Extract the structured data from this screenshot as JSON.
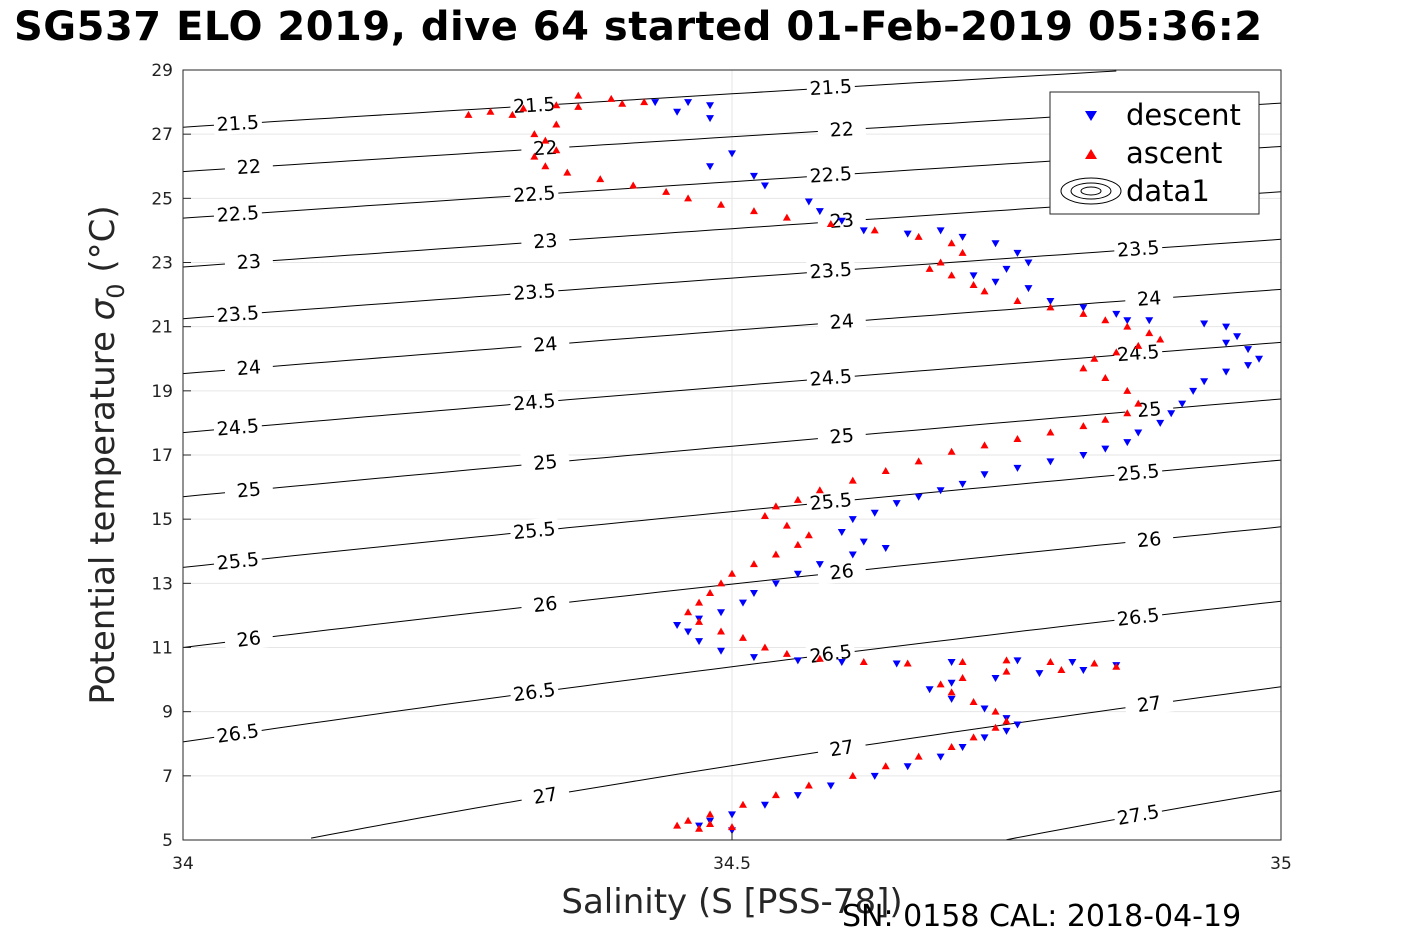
{
  "title": "SG537 ELO 2019, dive 64 started 01-Feb-2019 05:36:2",
  "footer": "SN: 0158  CAL: 2018-04-19",
  "colors": {
    "descent": "#0000ff",
    "ascent": "#ff0000",
    "contour": "#000000",
    "grid": "#e6e6e6"
  },
  "chart_data": {
    "type": "scatter",
    "xlabel": "Salinity (S [PSS-78])",
    "ylabel_main": "Potential temperature ",
    "ylabel_sigma": "σ",
    "ylabel_sub": "0",
    "ylabel_unit": " (°C)",
    "xlim": [
      34,
      35
    ],
    "ylim": [
      5,
      29
    ],
    "xticks": [
      "34",
      "34.5",
      "35"
    ],
    "yticks": [
      "5",
      "7",
      "9",
      "11",
      "13",
      "15",
      "17",
      "19",
      "21",
      "23",
      "25",
      "27",
      "29"
    ],
    "grid": true,
    "legend": {
      "position": "top-right",
      "entries": [
        "descent",
        "ascent",
        "data1"
      ]
    },
    "contours": [
      {
        "level": 21.5,
        "label": "21.5"
      },
      {
        "level": 22,
        "label": "22"
      },
      {
        "level": 22.5,
        "label": "22.5"
      },
      {
        "level": 23,
        "label": "23"
      },
      {
        "level": 23.5,
        "label": "23.5"
      },
      {
        "level": 24,
        "label": "24"
      },
      {
        "level": 24.5,
        "label": "24.5"
      },
      {
        "level": 25,
        "label": "25"
      },
      {
        "level": 25.5,
        "label": "25.5"
      },
      {
        "level": 26,
        "label": "26"
      },
      {
        "level": 26.5,
        "label": "26.5"
      },
      {
        "level": 27,
        "label": "27"
      },
      {
        "level": 27.5,
        "label": "27.5"
      }
    ],
    "series": [
      {
        "name": "descent",
        "marker": "triangle-down",
        "points": [
          [
            34.43,
            28.0
          ],
          [
            34.46,
            28.0
          ],
          [
            34.48,
            27.9
          ],
          [
            34.45,
            27.7
          ],
          [
            34.48,
            27.5
          ],
          [
            34.5,
            26.4
          ],
          [
            34.48,
            26.0
          ],
          [
            34.52,
            25.7
          ],
          [
            34.53,
            25.4
          ],
          [
            34.57,
            24.9
          ],
          [
            34.58,
            24.6
          ],
          [
            34.6,
            24.3
          ],
          [
            34.62,
            24.0
          ],
          [
            34.66,
            23.9
          ],
          [
            34.69,
            24.0
          ],
          [
            34.71,
            23.8
          ],
          [
            34.74,
            23.6
          ],
          [
            34.76,
            23.3
          ],
          [
            34.77,
            23.0
          ],
          [
            34.75,
            22.8
          ],
          [
            34.72,
            22.6
          ],
          [
            34.74,
            22.4
          ],
          [
            34.77,
            22.2
          ],
          [
            34.79,
            21.8
          ],
          [
            34.82,
            21.6
          ],
          [
            34.85,
            21.4
          ],
          [
            34.86,
            21.2
          ],
          [
            34.88,
            21.2
          ],
          [
            34.93,
            21.1
          ],
          [
            34.95,
            21.0
          ],
          [
            34.96,
            20.7
          ],
          [
            34.95,
            20.5
          ],
          [
            34.97,
            20.3
          ],
          [
            34.98,
            20.0
          ],
          [
            34.97,
            19.8
          ],
          [
            34.95,
            19.6
          ],
          [
            34.93,
            19.3
          ],
          [
            34.92,
            19.0
          ],
          [
            34.91,
            18.6
          ],
          [
            34.9,
            18.3
          ],
          [
            34.89,
            18.0
          ],
          [
            34.87,
            17.7
          ],
          [
            34.86,
            17.4
          ],
          [
            34.84,
            17.2
          ],
          [
            34.82,
            17.0
          ],
          [
            34.79,
            16.8
          ],
          [
            34.76,
            16.6
          ],
          [
            34.73,
            16.4
          ],
          [
            34.71,
            16.1
          ],
          [
            34.69,
            15.9
          ],
          [
            34.67,
            15.7
          ],
          [
            34.65,
            15.5
          ],
          [
            34.63,
            15.2
          ],
          [
            34.61,
            15.0
          ],
          [
            34.6,
            14.6
          ],
          [
            34.62,
            14.3
          ],
          [
            34.64,
            14.1
          ],
          [
            34.61,
            13.9
          ],
          [
            34.58,
            13.6
          ],
          [
            34.56,
            13.3
          ],
          [
            34.54,
            13.0
          ],
          [
            34.52,
            12.7
          ],
          [
            34.51,
            12.4
          ],
          [
            34.49,
            12.1
          ],
          [
            34.47,
            11.9
          ],
          [
            34.45,
            11.7
          ],
          [
            34.46,
            11.5
          ],
          [
            34.47,
            11.2
          ],
          [
            34.49,
            10.9
          ],
          [
            34.52,
            10.7
          ],
          [
            34.56,
            10.6
          ],
          [
            34.6,
            10.55
          ],
          [
            34.65,
            10.5
          ],
          [
            34.7,
            10.55
          ],
          [
            34.76,
            10.6
          ],
          [
            34.81,
            10.55
          ],
          [
            34.85,
            10.45
          ],
          [
            34.82,
            10.3
          ],
          [
            34.78,
            10.2
          ],
          [
            34.74,
            10.05
          ],
          [
            34.7,
            9.9
          ],
          [
            34.68,
            9.7
          ],
          [
            34.7,
            9.4
          ],
          [
            34.73,
            9.1
          ],
          [
            34.75,
            8.8
          ],
          [
            34.76,
            8.6
          ],
          [
            34.75,
            8.4
          ],
          [
            34.73,
            8.2
          ],
          [
            34.71,
            7.9
          ],
          [
            34.69,
            7.6
          ],
          [
            34.66,
            7.3
          ],
          [
            34.63,
            7.0
          ],
          [
            34.59,
            6.7
          ],
          [
            34.56,
            6.4
          ],
          [
            34.53,
            6.1
          ],
          [
            34.5,
            5.8
          ],
          [
            34.48,
            5.6
          ],
          [
            34.47,
            5.45
          ],
          [
            34.5,
            5.3
          ]
        ]
      },
      {
        "name": "ascent",
        "marker": "triangle-up",
        "points": [
          [
            34.42,
            28.0
          ],
          [
            34.39,
            28.1
          ],
          [
            34.36,
            28.2
          ],
          [
            34.34,
            27.9
          ],
          [
            34.31,
            27.8
          ],
          [
            34.28,
            27.7
          ],
          [
            34.26,
            27.6
          ],
          [
            34.3,
            27.6
          ],
          [
            34.36,
            27.85
          ],
          [
            34.4,
            27.95
          ],
          [
            34.34,
            27.3
          ],
          [
            34.32,
            27.0
          ],
          [
            34.33,
            26.8
          ],
          [
            34.34,
            26.5
          ],
          [
            34.32,
            26.3
          ],
          [
            34.33,
            26.0
          ],
          [
            34.35,
            25.8
          ],
          [
            34.38,
            25.6
          ],
          [
            34.41,
            25.4
          ],
          [
            34.44,
            25.2
          ],
          [
            34.46,
            25.0
          ],
          [
            34.49,
            24.8
          ],
          [
            34.52,
            24.6
          ],
          [
            34.55,
            24.4
          ],
          [
            34.59,
            24.2
          ],
          [
            34.63,
            24.0
          ],
          [
            34.67,
            23.8
          ],
          [
            34.7,
            23.6
          ],
          [
            34.71,
            23.3
          ],
          [
            34.69,
            23.0
          ],
          [
            34.68,
            22.8
          ],
          [
            34.7,
            22.6
          ],
          [
            34.72,
            22.3
          ],
          [
            34.73,
            22.1
          ],
          [
            34.76,
            21.8
          ],
          [
            34.79,
            21.6
          ],
          [
            34.82,
            21.4
          ],
          [
            34.84,
            21.2
          ],
          [
            34.86,
            21.0
          ],
          [
            34.88,
            20.8
          ],
          [
            34.89,
            20.6
          ],
          [
            34.87,
            20.4
          ],
          [
            34.85,
            20.2
          ],
          [
            34.83,
            20.0
          ],
          [
            34.82,
            19.7
          ],
          [
            34.84,
            19.4
          ],
          [
            34.86,
            19.0
          ],
          [
            34.87,
            18.6
          ],
          [
            34.86,
            18.3
          ],
          [
            34.84,
            18.1
          ],
          [
            34.82,
            17.9
          ],
          [
            34.79,
            17.7
          ],
          [
            34.76,
            17.5
          ],
          [
            34.73,
            17.3
          ],
          [
            34.7,
            17.1
          ],
          [
            34.67,
            16.8
          ],
          [
            34.64,
            16.5
          ],
          [
            34.61,
            16.2
          ],
          [
            34.58,
            15.9
          ],
          [
            34.56,
            15.6
          ],
          [
            34.54,
            15.4
          ],
          [
            34.53,
            15.1
          ],
          [
            34.55,
            14.8
          ],
          [
            34.57,
            14.5
          ],
          [
            34.56,
            14.2
          ],
          [
            34.54,
            13.9
          ],
          [
            34.52,
            13.6
          ],
          [
            34.5,
            13.3
          ],
          [
            34.49,
            13.0
          ],
          [
            34.48,
            12.7
          ],
          [
            34.47,
            12.4
          ],
          [
            34.46,
            12.1
          ],
          [
            34.47,
            11.8
          ],
          [
            34.49,
            11.5
          ],
          [
            34.51,
            11.3
          ],
          [
            34.53,
            11.0
          ],
          [
            34.55,
            10.8
          ],
          [
            34.58,
            10.65
          ],
          [
            34.62,
            10.55
          ],
          [
            34.66,
            10.5
          ],
          [
            34.71,
            10.55
          ],
          [
            34.75,
            10.6
          ],
          [
            34.79,
            10.55
          ],
          [
            34.83,
            10.5
          ],
          [
            34.85,
            10.4
          ],
          [
            34.8,
            10.3
          ],
          [
            34.75,
            10.25
          ],
          [
            34.71,
            10.05
          ],
          [
            34.69,
            9.85
          ],
          [
            34.7,
            9.6
          ],
          [
            34.72,
            9.3
          ],
          [
            34.74,
            9.0
          ],
          [
            34.75,
            8.7
          ],
          [
            34.74,
            8.5
          ],
          [
            34.72,
            8.2
          ],
          [
            34.7,
            7.9
          ],
          [
            34.67,
            7.6
          ],
          [
            34.64,
            7.3
          ],
          [
            34.61,
            7.0
          ],
          [
            34.57,
            6.7
          ],
          [
            34.54,
            6.4
          ],
          [
            34.51,
            6.1
          ],
          [
            34.48,
            5.8
          ],
          [
            34.46,
            5.6
          ],
          [
            34.45,
            5.45
          ],
          [
            34.47,
            5.35
          ],
          [
            34.5,
            5.4
          ],
          [
            34.48,
            5.5
          ]
        ]
      }
    ]
  }
}
